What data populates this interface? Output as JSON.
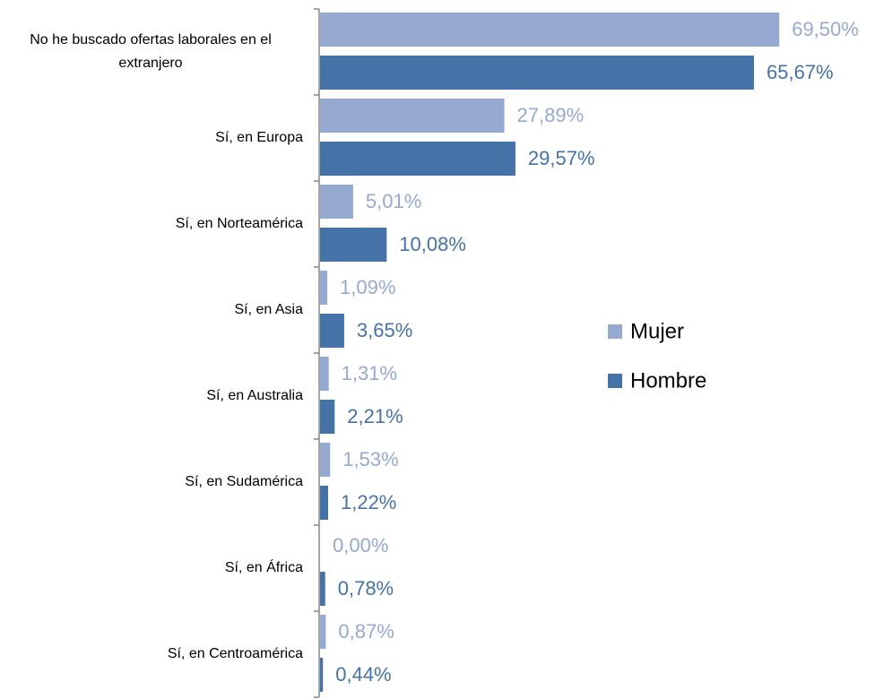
{
  "chart_data": {
    "type": "bar",
    "orientation": "horizontal",
    "categories": [
      "No he buscado ofertas laborales en el extranjero",
      "Sí, en Europa",
      "Sí, en Norteamérica",
      "Sí, en Asia",
      "Sí, en Australia",
      "Sí, en Sudamérica",
      "Sí, en África",
      "Sí, en Centroamérica"
    ],
    "series": [
      {
        "name": "Mujer",
        "color": "#95a9d1",
        "values": [
          69.5,
          27.89,
          5.01,
          1.09,
          1.31,
          1.53,
          0.0,
          0.87
        ],
        "value_labels": [
          "69,50%",
          "27,89%",
          "5,01%",
          "1,09%",
          "1,31%",
          "1,53%",
          "0,00%",
          "0,87%"
        ]
      },
      {
        "name": "Hombre",
        "color": "#4572a7",
        "values": [
          65.67,
          29.57,
          10.08,
          3.65,
          2.21,
          1.22,
          0.78,
          0.44
        ],
        "value_labels": [
          "65,67%",
          "29,57%",
          "10,08%",
          "3,65%",
          "2,21%",
          "1,22%",
          "0,78%",
          "0,44%"
        ]
      }
    ],
    "legend": "right"
  }
}
